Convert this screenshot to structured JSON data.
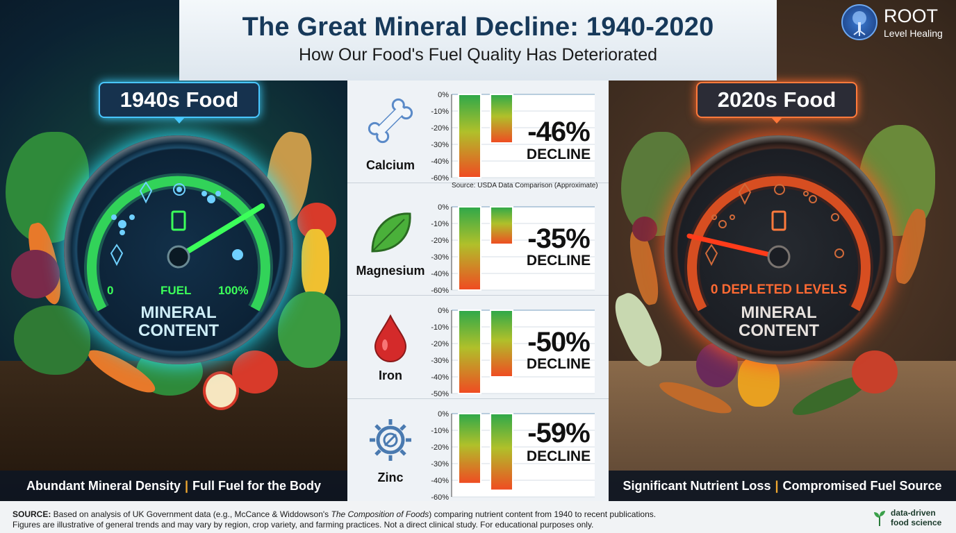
{
  "header": {
    "title": "The Great Mineral Decline: 1940-2020",
    "subtitle": "How Our Food's Fuel Quality Has Deteriorated"
  },
  "brand": {
    "name": "ROOT",
    "tagline": "Level Healing",
    "icon": "tree-logo-icon"
  },
  "left_panel": {
    "title": "1940s Food",
    "gauge_min": "0",
    "gauge_center": "FUEL",
    "gauge_max": "100%",
    "gauge_label_line1": "MINERAL",
    "gauge_label_line2": "CONTENT",
    "gauge_level": 0.9,
    "caption_left": "Abundant Mineral Density",
    "caption_sep": "|",
    "caption_right": "Full Fuel for the Body",
    "accent": "#3cff5a"
  },
  "right_panel": {
    "title": "2020s Food",
    "gauge_status": "0 DEPLETED LEVELS",
    "gauge_label_line1": "MINERAL",
    "gauge_label_line2": "CONTENT",
    "gauge_level": 0.05,
    "caption_left": "Significant Nutrient Loss",
    "caption_sep": "|",
    "caption_right": "Compromised Fuel Source",
    "accent": "#ff6a33"
  },
  "minerals": [
    {
      "name": "Calcium",
      "icon": "bone-icon",
      "pct": "-46%",
      "word": "DECLINE"
    },
    {
      "name": "Magnesium",
      "icon": "leaf-icon",
      "pct": "-35%",
      "word": "DECLINE"
    },
    {
      "name": "Iron",
      "icon": "blood-drop-icon",
      "pct": "-50%",
      "word": "DECLINE"
    },
    {
      "name": "Zinc",
      "icon": "gear-icon",
      "pct": "-59%",
      "word": "DECLINE"
    }
  ],
  "chart_source_note": "Source: USDA Data Comparison (Approximate)",
  "chart_data": [
    {
      "type": "bar",
      "title": "Calcium",
      "ticks": [
        "0%",
        "-10%",
        "-20%",
        "-30%",
        "-40%",
        "-60%"
      ],
      "values": [
        -60,
        -35
      ],
      "ylim": [
        -60,
        0
      ]
    },
    {
      "type": "bar",
      "title": "Magnesium",
      "ticks": [
        "0%",
        "-10%",
        "-20%",
        "-30%",
        "-40%",
        "-60%"
      ],
      "values": [
        -60,
        -27
      ],
      "ylim": [
        -60,
        0
      ]
    },
    {
      "type": "bar",
      "title": "Iron",
      "ticks": [
        "0%",
        "-10%",
        "-20%",
        "-30%",
        "-40%",
        "-50%"
      ],
      "values": [
        -50,
        -40
      ],
      "ylim": [
        -50,
        0
      ]
    },
    {
      "type": "bar",
      "title": "Zinc",
      "ticks": [
        "0%",
        "-10%",
        "-20%",
        "-30%",
        "-40%",
        "-60%"
      ],
      "values": [
        -42,
        -46
      ],
      "ylim": [
        -50,
        0
      ]
    }
  ],
  "footer": {
    "source_label": "SOURCE:",
    "source_text_a": " Based on analysis of UK Government data (e.g., McCance & Widdowson's ",
    "source_book": "The Composition of Foods",
    "source_text_b": ") comparing nutrient content from 1940 to recent publications.",
    "line2": "Figures are illustrative of general trends and may vary by region, crop variety, and farming practices. Not a direct clinical study. For educational purposes only.",
    "brand_line1": "data-driven",
    "brand_line2": "food science"
  }
}
